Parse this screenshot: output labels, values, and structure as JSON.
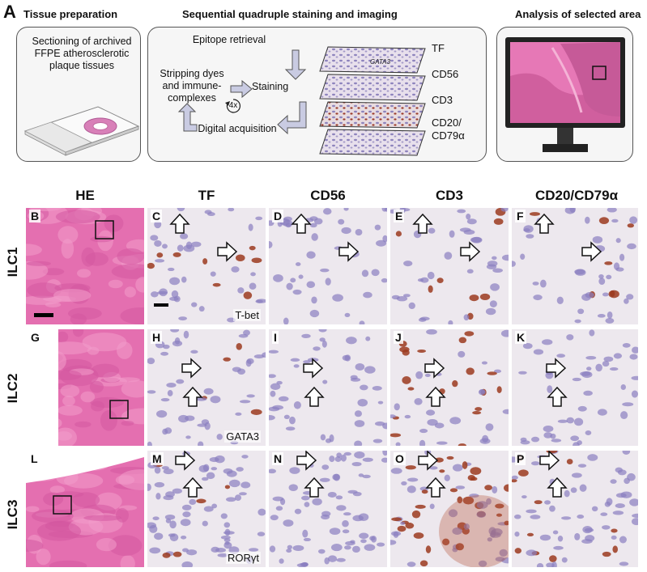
{
  "figure_letter": "A",
  "sections": {
    "tissue_preparation": {
      "title": "Tissue preparation",
      "text": "Sectioning of archived FFPE atherosclerotic plaque tissues"
    },
    "staining": {
      "title": "Sequential quadruple staining and imaging",
      "steps": {
        "retrieval": "Epitope retrieval",
        "staining": "Staining",
        "stripping": "Stripping dyes and immune-complexes",
        "acquisition": "Digital acquisition",
        "cycles": "4x"
      },
      "layers": [
        "TF",
        "CD56",
        "CD3",
        "CD20/ CD79α"
      ],
      "layer_overlay": "GATA3"
    },
    "analysis": {
      "title": "Analysis of selected area"
    }
  },
  "grid": {
    "columns": [
      "HE",
      "TF",
      "CD56",
      "CD3",
      "CD20/CD79α"
    ],
    "rows": [
      {
        "label": "ILC1",
        "panels": [
          "B",
          "C",
          "D",
          "E",
          "F"
        ],
        "tf_marker": "T-bet"
      },
      {
        "label": "ILC2",
        "panels": [
          "G",
          "H",
          "I",
          "J",
          "K"
        ],
        "tf_marker": "GATA3"
      },
      {
        "label": "ILC3",
        "panels": [
          "L",
          "M",
          "N",
          "O",
          "P"
        ],
        "tf_marker": "RORγt"
      }
    ]
  },
  "colors": {
    "he_pink": "#e46fb0",
    "hematoxylin": "#8a7fc0",
    "dab_brown": "#9b3a1f",
    "background": "#ede8ee"
  }
}
